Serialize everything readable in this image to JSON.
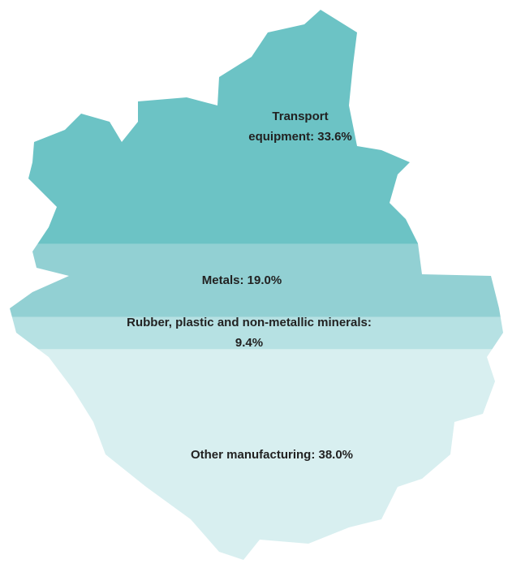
{
  "chart_data": {
    "type": "pictogram",
    "values": [
      33.6,
      19.0,
      9.4,
      38.0
    ],
    "value_labels": [
      "Transport equipment: 33.6%",
      "Metals: 19.0%",
      "Rubber, plastic and non-metallic minerals: 9.4%",
      "Other manufacturing: 38.0%"
    ],
    "colors": [
      "#6cc3c5",
      "#92d0d3",
      "#b6e1e3",
      "#d8eff0"
    ]
  }
}
